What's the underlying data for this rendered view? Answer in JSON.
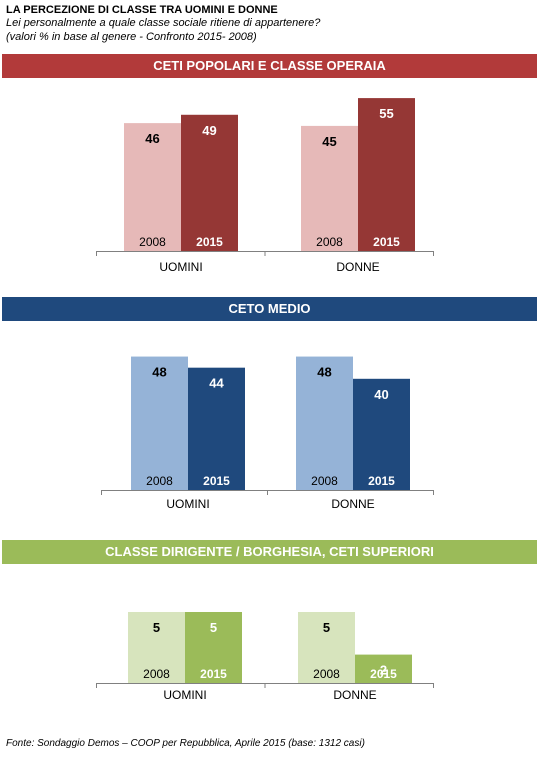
{
  "header": {
    "title": "LA PERCEZIONE DI CLASSE TRA UOMINI E DONNE",
    "question": "Lei personalmente a quale classe sociale ritiene di appartenere?",
    "note": "(valori % in base al genere - Confronto 2015- 2008)"
  },
  "footer": {
    "source": "Fonte: Sondaggio Demos – COOP per Repubblica, Aprile 2015 (base: 1312 casi)"
  },
  "chart_data": [
    {
      "type": "bar",
      "title": "CETI POPOLARI E CLASSE OPERAIA",
      "categories": [
        "UOMINI",
        "DONNE"
      ],
      "series": [
        {
          "name": "2008",
          "values": [
            46,
            45
          ]
        },
        {
          "name": "2015",
          "values": [
            49,
            55
          ]
        }
      ],
      "colors": [
        "#e6b9b8",
        "#953735"
      ],
      "banner_color": "#b23a3a"
    },
    {
      "type": "bar",
      "title": "CETO MEDIO",
      "categories": [
        "UOMINI",
        "DONNE"
      ],
      "series": [
        {
          "name": "2008",
          "values": [
            48,
            48
          ]
        },
        {
          "name": "2015",
          "values": [
            44,
            40
          ]
        }
      ],
      "colors": [
        "#95b3d7",
        "#1f497d"
      ],
      "banner_color": "#1f497d"
    },
    {
      "type": "bar",
      "title": "CLASSE DIRIGENTE / BORGHESIA, CETI SUPERIORI",
      "categories": [
        "UOMINI",
        "DONNE"
      ],
      "series": [
        {
          "name": "2008",
          "values": [
            5,
            5
          ]
        },
        {
          "name": "2015",
          "values": [
            5,
            2
          ]
        }
      ],
      "colors": [
        "#d7e4bd",
        "#9bbb59"
      ],
      "banner_color": "#9bbb59"
    }
  ]
}
